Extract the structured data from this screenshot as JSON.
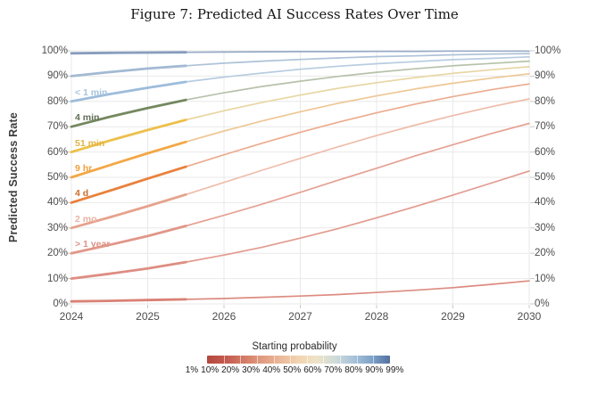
{
  "title": "Figure 7: Predicted AI Success Rates Over Time",
  "axes": {
    "y_title": "Predicted Success Rate",
    "y_ticks": [
      {
        "value": 0,
        "label": "0%"
      },
      {
        "value": 10,
        "label": "10%"
      },
      {
        "value": 20,
        "label": "20%"
      },
      {
        "value": 30,
        "label": "30%"
      },
      {
        "value": 40,
        "label": "40%"
      },
      {
        "value": 50,
        "label": "50%"
      },
      {
        "value": 60,
        "label": "60%"
      },
      {
        "value": 70,
        "label": "70%"
      },
      {
        "value": 80,
        "label": "80%"
      },
      {
        "value": 90,
        "label": "90%"
      },
      {
        "value": 100,
        "label": "100%"
      }
    ],
    "x_ticks": [
      {
        "value": 2024,
        "label": "2024"
      },
      {
        "value": 2025,
        "label": "2025"
      },
      {
        "value": 2026,
        "label": "2026"
      },
      {
        "value": 2027,
        "label": "2027"
      },
      {
        "value": 2028,
        "label": "2028"
      },
      {
        "value": 2029,
        "label": "2029"
      },
      {
        "value": 2030,
        "label": "2030"
      }
    ]
  },
  "legend": {
    "title": "Starting probability",
    "tick_labels": [
      "1%",
      "10%",
      "20%",
      "30%",
      "40%",
      "50%",
      "60%",
      "70%",
      "80%",
      "90%",
      "99%"
    ],
    "gradient_colors": [
      "#b4473f",
      "#c35a4e",
      "#d37a65",
      "#e09b80",
      "#ebb89a",
      "#f2d4b2",
      "#eee3c8",
      "#cfdbd9",
      "#a8c3d9",
      "#7fa3c9",
      "#52719f"
    ]
  },
  "chart_data": {
    "type": "line",
    "title": "Figure 7: Predicted AI Success Rates Over Time",
    "xlabel": "",
    "ylabel": "Predicted Success Rate",
    "xlim": [
      2024,
      2030
    ],
    "ylim": [
      0,
      100
    ],
    "grid": true,
    "legend_position": "bottom",
    "observed_until": 2025.5,
    "x": [
      2024,
      2024.5,
      2025,
      2025.5,
      2026,
      2026.5,
      2027,
      2027.5,
      2028,
      2028.5,
      2029,
      2029.5,
      2030
    ],
    "series": [
      {
        "name": "99%",
        "color": "#97abc7",
        "color_observed": "#879dbd",
        "values": [
          99.0,
          99.2,
          99.3,
          99.4,
          99.5,
          99.6,
          99.7,
          99.7,
          99.8,
          99.8,
          99.9,
          99.9,
          99.9
        ]
      },
      {
        "name": "90%",
        "color": "#aec2d8",
        "color_observed": "#a3b9d3",
        "values": [
          90.0,
          91.6,
          93.0,
          94.1,
          95.1,
          95.9,
          96.6,
          97.2,
          97.7,
          98.0,
          98.4,
          98.7,
          98.9
        ]
      },
      {
        "name": "80%",
        "color": "#b7cce1",
        "color_observed": "#9dbcdb",
        "label": "< 1 min",
        "label_color": "#a6c3dd",
        "values": [
          80.0,
          82.9,
          85.4,
          87.7,
          89.6,
          91.2,
          92.7,
          93.9,
          94.9,
          95.7,
          96.5,
          97.0,
          97.6
        ]
      },
      {
        "name": "70%",
        "color": "#b6c2aa",
        "color_observed": "#74885f",
        "label": "4 min",
        "label_color": "#5f6d55",
        "values": [
          70.0,
          73.9,
          77.4,
          80.6,
          83.4,
          85.9,
          88.0,
          89.9,
          91.5,
          92.9,
          94.1,
          95.0,
          95.9
        ]
      },
      {
        "name": "60%",
        "color": "#e8d6a3",
        "color_observed": "#ecc04b",
        "label": "51 min",
        "label_color": "#e2b445",
        "values": [
          60.0,
          64.5,
          68.7,
          72.7,
          76.3,
          79.6,
          82.5,
          85.2,
          87.4,
          89.4,
          91.1,
          92.5,
          93.7
        ]
      },
      {
        "name": "50%",
        "color": "#eec795",
        "color_observed": "#f3a746",
        "label": "9 hr",
        "label_color": "#ee9f3e",
        "values": [
          50.0,
          54.8,
          59.5,
          64.0,
          68.3,
          72.3,
          75.9,
          79.3,
          82.2,
          84.9,
          87.2,
          89.2,
          90.9
        ]
      },
      {
        "name": "40%",
        "color": "#ecac90",
        "color_observed": "#e9813b",
        "label": "4 d",
        "label_color": "#cc6f2c",
        "values": [
          40.0,
          44.7,
          49.5,
          54.2,
          58.9,
          63.5,
          67.8,
          71.8,
          75.5,
          78.9,
          81.9,
          84.6,
          86.9
        ]
      },
      {
        "name": "30%",
        "color": "#eebdab",
        "color_observed": "#e6a28d",
        "label": "2 mo",
        "label_color": "#e9b2a2",
        "values": [
          30.0,
          34.2,
          38.6,
          43.2,
          48.0,
          52.8,
          57.5,
          62.1,
          66.5,
          70.6,
          74.4,
          77.9,
          81.0
        ]
      },
      {
        "name": "20%",
        "color": "#e5a294",
        "color_observed": "#e19689",
        "label": "> 1 year",
        "label_color": "#dd9485",
        "values": [
          20.0,
          23.3,
          26.8,
          30.8,
          35.0,
          39.4,
          44.1,
          48.9,
          53.6,
          58.4,
          62.9,
          67.3,
          71.3
        ]
      },
      {
        "name": "10%",
        "color": "#e29b90",
        "color_observed": "#de8d82",
        "values": [
          10.0,
          11.9,
          14.0,
          16.5,
          19.3,
          22.4,
          26.0,
          29.8,
          34.0,
          38.4,
          43.0,
          47.7,
          52.5
        ]
      },
      {
        "name": "1%",
        "color": "#dc8c80",
        "color_observed": "#d98175",
        "values": [
          1.0,
          1.2,
          1.5,
          1.8,
          2.1,
          2.6,
          3.1,
          3.7,
          4.5,
          5.4,
          6.4,
          7.7,
          9.1
        ]
      }
    ]
  }
}
